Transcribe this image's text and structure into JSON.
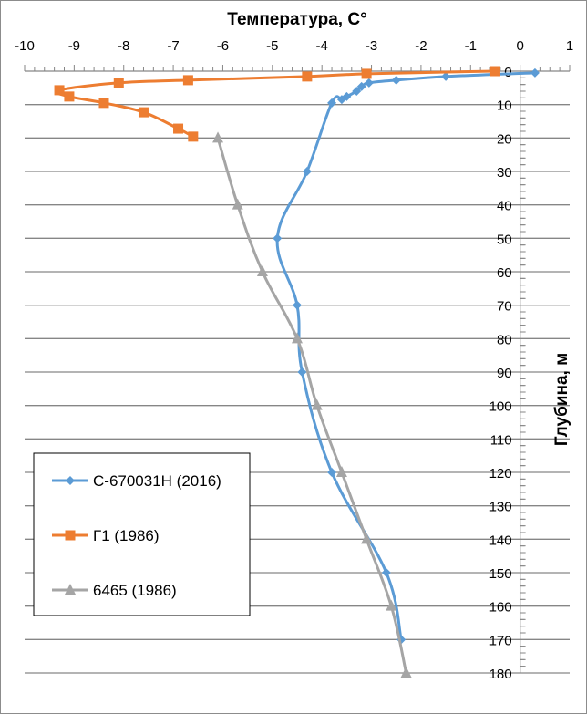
{
  "chart_data": {
    "type": "scatter",
    "title": "Температура, C°",
    "xlabel": "Температура, C°",
    "ylabel": "Глубина, м",
    "xlim": [
      -10,
      1
    ],
    "ylim": [
      0,
      180
    ],
    "y_reversed": true,
    "x_axis_position": "top",
    "y_axis_at_x": 0,
    "x_ticks": [
      -10,
      -9,
      -8,
      -7,
      -6,
      -5,
      -4,
      -3,
      -2,
      -1,
      0,
      1
    ],
    "y_ticks": [
      0,
      10,
      20,
      30,
      40,
      50,
      60,
      70,
      80,
      90,
      100,
      110,
      120,
      130,
      140,
      150,
      160,
      170,
      180
    ],
    "grid": "horizontal",
    "legend_position": "left-lower",
    "series": [
      {
        "name": "С-670031Н (2016)",
        "color": "#5b9bd5",
        "marker": "diamond",
        "points": [
          {
            "x": 0.3,
            "y": 0.5
          },
          {
            "x": -1.5,
            "y": 1.6
          },
          {
            "x": -2.5,
            "y": 2.7
          },
          {
            "x": -3.05,
            "y": 3.5
          },
          {
            "x": -3.2,
            "y": 4.6
          },
          {
            "x": -3.3,
            "y": 6.0
          },
          {
            "x": -3.5,
            "y": 7.6
          },
          {
            "x": -3.6,
            "y": 8.5
          },
          {
            "x": -3.8,
            "y": 9.5
          },
          {
            "x": -4.3,
            "y": 30
          },
          {
            "x": -4.9,
            "y": 50
          },
          {
            "x": -4.5,
            "y": 70
          },
          {
            "x": -4.4,
            "y": 90
          },
          {
            "x": -3.8,
            "y": 120
          },
          {
            "x": -2.7,
            "y": 150
          },
          {
            "x": -2.4,
            "y": 170
          }
        ]
      },
      {
        "name": "Г1 (1986)",
        "color": "#ed7d31",
        "marker": "square",
        "points": [
          {
            "x": -0.5,
            "y": 0
          },
          {
            "x": -3.1,
            "y": 0.8
          },
          {
            "x": -4.3,
            "y": 1.6
          },
          {
            "x": -6.7,
            "y": 2.7
          },
          {
            "x": -8.1,
            "y": 3.5
          },
          {
            "x": -9.3,
            "y": 5.7
          },
          {
            "x": -9.1,
            "y": 7.6
          },
          {
            "x": -8.4,
            "y": 9.5
          },
          {
            "x": -7.6,
            "y": 12.3
          },
          {
            "x": -6.9,
            "y": 17.2
          },
          {
            "x": -6.6,
            "y": 19.6
          }
        ]
      },
      {
        "name": "6465 (1986)",
        "color": "#a5a5a5",
        "marker": "triangle",
        "points": [
          {
            "x": -6.1,
            "y": 20
          },
          {
            "x": -5.7,
            "y": 40
          },
          {
            "x": -5.2,
            "y": 60
          },
          {
            "x": -4.5,
            "y": 80
          },
          {
            "x": -4.1,
            "y": 100
          },
          {
            "x": -3.6,
            "y": 120
          },
          {
            "x": -3.1,
            "y": 140
          },
          {
            "x": -2.6,
            "y": 160
          },
          {
            "x": -2.3,
            "y": 180
          }
        ]
      }
    ]
  }
}
